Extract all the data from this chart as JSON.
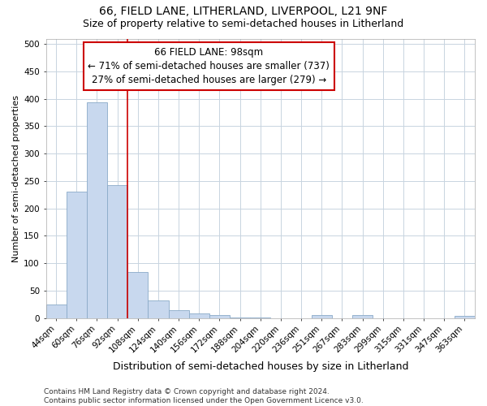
{
  "title": "66, FIELD LANE, LITHERLAND, LIVERPOOL, L21 9NF",
  "subtitle": "Size of property relative to semi-detached houses in Litherland",
  "xlabel": "Distribution of semi-detached houses by size in Litherland",
  "ylabel": "Number of semi-detached properties",
  "categories": [
    "44sqm",
    "60sqm",
    "76sqm",
    "92sqm",
    "108sqm",
    "124sqm",
    "140sqm",
    "156sqm",
    "172sqm",
    "188sqm",
    "204sqm",
    "220sqm",
    "236sqm",
    "251sqm",
    "267sqm",
    "283sqm",
    "299sqm",
    "315sqm",
    "331sqm",
    "347sqm",
    "363sqm"
  ],
  "values": [
    24,
    231,
    393,
    243,
    84,
    32,
    15,
    8,
    5,
    1,
    1,
    0,
    0,
    5,
    0,
    5,
    0,
    0,
    0,
    0,
    4
  ],
  "bar_color": "#c8d8ee",
  "bar_edge_color": "#8aaac8",
  "vline_color": "#cc0000",
  "vline_x": 3.5,
  "annotation_line1": "66 FIELD LANE: 98sqm",
  "annotation_line2": "← 71% of semi-detached houses are smaller (737)",
  "annotation_line3": "27% of semi-detached houses are larger (279) →",
  "annotation_box_facecolor": "#ffffff",
  "annotation_box_edgecolor": "#cc0000",
  "ylim": [
    0,
    510
  ],
  "yticks": [
    0,
    50,
    100,
    150,
    200,
    250,
    300,
    350,
    400,
    450,
    500
  ],
  "grid_color": "#c8d4e0",
  "bg_color": "#ffffff",
  "title_fontsize": 10,
  "subtitle_fontsize": 9,
  "xlabel_fontsize": 9,
  "ylabel_fontsize": 8,
  "tick_fontsize": 7.5,
  "annotation_fontsize": 8.5,
  "footnote_fontsize": 6.5,
  "footnote": "Contains HM Land Registry data © Crown copyright and database right 2024.\nContains public sector information licensed under the Open Government Licence v3.0."
}
